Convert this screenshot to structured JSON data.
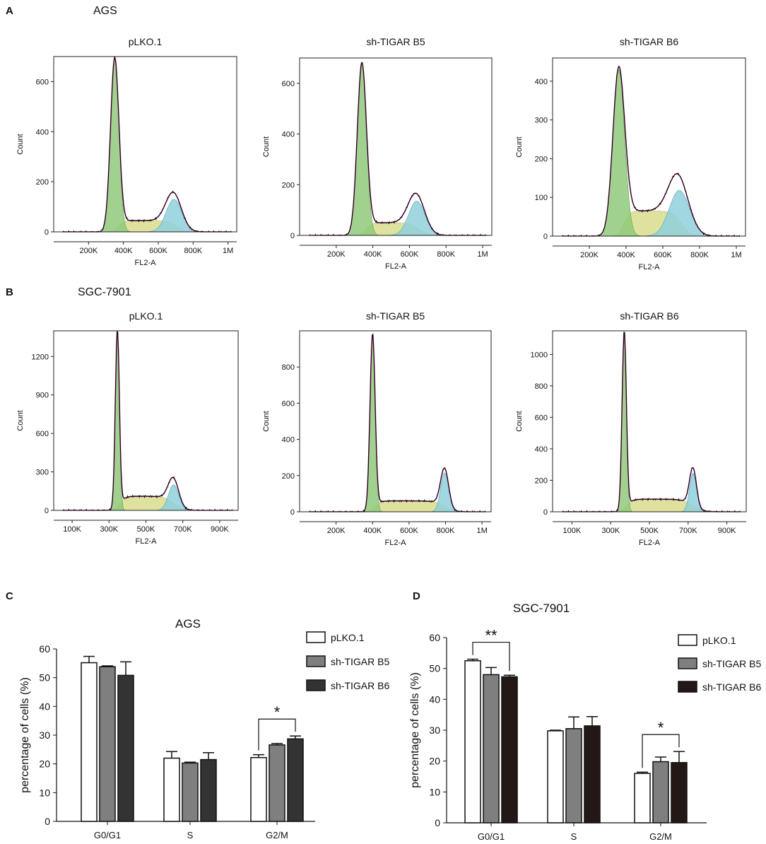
{
  "panel_labels": {
    "A": "A",
    "B": "B",
    "C": "C",
    "D": "D"
  },
  "section_titles": {
    "A": "AGS",
    "B": "SGC-7901"
  },
  "colors": {
    "g1_fill": "#8fc97a",
    "s_fill": "#d9dc8e",
    "g2_fill": "#8fd0dc",
    "fit_line": "#c0429a",
    "data_line": "#000000",
    "bar_pLKO": "#ffffff",
    "bar_B5": "#7f7f7f",
    "bar_B6_ags": "#333333",
    "bar_B6_sgc": "#231815"
  },
  "chart_data": [
    {
      "id": "A1",
      "type": "area",
      "section": "AGS",
      "title": "pLKO.1",
      "xlabel": "FL2-A",
      "ylabel": "Count",
      "xlim": [
        0,
        1050000
      ],
      "ylim": [
        0,
        700
      ],
      "xticks": [
        200000,
        400000,
        600000,
        800000,
        1000000
      ],
      "xtick_labels": [
        "200K",
        "400K",
        "600K",
        "800K",
        "1M"
      ],
      "yticks": [
        0,
        200,
        400,
        600
      ],
      "ytick_labels": [
        "0",
        "200",
        "400",
        "600"
      ],
      "g1": {
        "mu": 350000,
        "sd": 24000,
        "height": 690
      },
      "s": {
        "start": 375000,
        "end": 700000,
        "level": 45
      },
      "g2": {
        "mu": 690000,
        "sd": 45000,
        "height": 130
      }
    },
    {
      "id": "A2",
      "type": "area",
      "section": "AGS",
      "title": "sh-TIGAR B5",
      "xlabel": "FL2-A",
      "ylabel": "Count",
      "xlim": [
        0,
        1050000
      ],
      "ylim": [
        0,
        700
      ],
      "xticks": [
        200000,
        400000,
        600000,
        800000,
        1000000
      ],
      "xtick_labels": [
        "200K",
        "400K",
        "600K",
        "800K",
        "1M"
      ],
      "yticks": [
        0,
        200,
        400,
        600
      ],
      "ytick_labels": [
        "0",
        "200",
        "400",
        "600"
      ],
      "g1": {
        "mu": 340000,
        "sd": 25000,
        "height": 675
      },
      "s": {
        "start": 365000,
        "end": 650000,
        "level": 50
      },
      "g2": {
        "mu": 640000,
        "sd": 45000,
        "height": 135
      }
    },
    {
      "id": "A3",
      "type": "area",
      "section": "AGS",
      "title": "sh-TIGAR B6",
      "xlabel": "FL2-A",
      "ylabel": "Count",
      "xlim": [
        0,
        1050000
      ],
      "ylim": [
        0,
        460
      ],
      "xticks": [
        200000,
        400000,
        600000,
        800000,
        1000000
      ],
      "xtick_labels": [
        "200K",
        "400K",
        "600K",
        "800K",
        "1M"
      ],
      "yticks": [
        0,
        100,
        200,
        300,
        400
      ],
      "ytick_labels": [
        "0",
        "100",
        "200",
        "300",
        "400"
      ],
      "g1": {
        "mu": 360000,
        "sd": 32000,
        "height": 430
      },
      "s": {
        "start": 390000,
        "end": 700000,
        "level": 65
      },
      "g2": {
        "mu": 690000,
        "sd": 55000,
        "height": 118
      }
    },
    {
      "id": "B1",
      "type": "area",
      "section": "SGC-7901",
      "title": "pLKO.1",
      "xlabel": "FL2-A",
      "ylabel": "Count",
      "xlim": [
        0,
        1000000
      ],
      "ylim": [
        0,
        1400
      ],
      "xticks": [
        100000,
        300000,
        500000,
        700000,
        900000
      ],
      "xtick_labels": [
        "100K",
        "300K",
        "500K",
        "700K",
        "900K"
      ],
      "yticks": [
        0,
        300,
        600,
        900,
        1200
      ],
      "ytick_labels": [
        "0",
        "300",
        "600",
        "900",
        "1200"
      ],
      "g1": {
        "mu": 345000,
        "sd": 11000,
        "height": 1380
      },
      "s": {
        "start": 360000,
        "end": 650000,
        "level": 110
      },
      "g2": {
        "mu": 650000,
        "sd": 28000,
        "height": 200
      }
    },
    {
      "id": "B2",
      "type": "area",
      "section": "SGC-7901",
      "title": "sh-TIGAR B5",
      "xlabel": "FL2-A",
      "ylabel": "Count",
      "xlim": [
        0,
        1050000
      ],
      "ylim": [
        0,
        1000
      ],
      "xticks": [
        200000,
        400000,
        600000,
        800000,
        1000000
      ],
      "xtick_labels": [
        "200K",
        "400K",
        "600K",
        "800K",
        "1M"
      ],
      "yticks": [
        0,
        200,
        400,
        600,
        800
      ],
      "ytick_labels": [
        "0",
        "200",
        "400",
        "600",
        "800"
      ],
      "g1": {
        "mu": 400000,
        "sd": 14000,
        "height": 970
      },
      "s": {
        "start": 415000,
        "end": 790000,
        "level": 60
      },
      "g2": {
        "mu": 795000,
        "sd": 22000,
        "height": 215
      }
    },
    {
      "id": "B3",
      "type": "area",
      "section": "SGC-7901",
      "title": "sh-TIGAR B6",
      "xlabel": "FL2-A",
      "ylabel": "Count",
      "xlim": [
        0,
        1000000
      ],
      "ylim": [
        0,
        1150
      ],
      "xticks": [
        100000,
        300000,
        500000,
        700000,
        900000
      ],
      "xtick_labels": [
        "100K",
        "300K",
        "500K",
        "700K",
        "900K"
      ],
      "yticks": [
        0,
        200,
        400,
        600,
        800,
        1000
      ],
      "ytick_labels": [
        "0",
        "200",
        "400",
        "600",
        "800",
        "1000"
      ],
      "g1": {
        "mu": 370000,
        "sd": 11000,
        "height": 1130
      },
      "s": {
        "start": 385000,
        "end": 720000,
        "level": 80
      },
      "g2": {
        "mu": 725000,
        "sd": 18000,
        "height": 245
      }
    },
    {
      "id": "C",
      "type": "bar",
      "title": "AGS",
      "ylabel": "percentage of cells (%)",
      "xlabel": "",
      "ylim": [
        0,
        60
      ],
      "yticks": [
        0,
        10,
        20,
        30,
        40,
        50,
        60
      ],
      "categories": [
        "G0/G1",
        "S",
        "G2/M"
      ],
      "series": [
        {
          "name": "pLKO.1",
          "values": [
            55.2,
            22.0,
            22.2
          ],
          "errors": [
            2.2,
            2.3,
            1.0
          ]
        },
        {
          "name": "sh-TIGAR B5",
          "values": [
            53.8,
            20.3,
            26.6
          ],
          "errors": [
            0.3,
            0.3,
            0.5
          ]
        },
        {
          "name": "sh-TIGAR B6",
          "values": [
            50.8,
            21.5,
            28.7
          ],
          "errors": [
            4.7,
            2.4,
            1.0
          ]
        }
      ],
      "legend_position": "top-right",
      "annotations": [
        {
          "label": "*",
          "category": "G2/M",
          "from_series": 0,
          "to_series": 2
        }
      ]
    },
    {
      "id": "D",
      "type": "bar",
      "title": "SGC-7901",
      "ylabel": "percentage of cells (%)",
      "xlabel": "",
      "ylim": [
        0,
        60
      ],
      "yticks": [
        0,
        10,
        20,
        30,
        40,
        50,
        60
      ],
      "categories": [
        "G0/G1",
        "S",
        "G2/M"
      ],
      "series": [
        {
          "name": "pLKO.1",
          "values": [
            52.5,
            29.8,
            16.0
          ],
          "errors": [
            0.5,
            0.2,
            0.4
          ]
        },
        {
          "name": "sh-TIGAR B5",
          "values": [
            48.0,
            30.5,
            19.8
          ],
          "errors": [
            2.3,
            3.8,
            1.5
          ]
        },
        {
          "name": "sh-TIGAR B6",
          "values": [
            47.3,
            31.4,
            19.5
          ],
          "errors": [
            0.5,
            3.0,
            3.6
          ]
        }
      ],
      "legend_position": "top-right",
      "annotations": [
        {
          "label": "**",
          "category": "G0/G1",
          "from_series": 0,
          "to_series": 2
        },
        {
          "label": "*",
          "category": "G2/M",
          "from_series": 0,
          "to_series": 2
        }
      ]
    }
  ]
}
